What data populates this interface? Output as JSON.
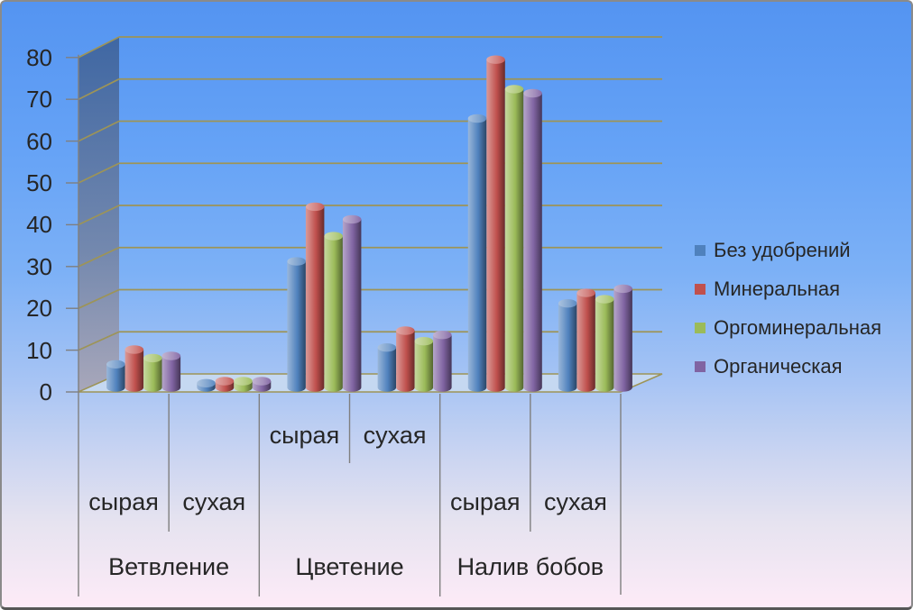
{
  "chart_data": {
    "type": "bar",
    "style": "3d-cylinder",
    "title": "",
    "xlabel": "",
    "ylabel": "",
    "y_axis": {
      "min": 0,
      "max": 80,
      "step": 10,
      "tick_labels": [
        "0",
        "10",
        "20",
        "30",
        "40",
        "50",
        "60",
        "70",
        "80"
      ]
    },
    "grid": true,
    "legend_position": "right",
    "series": [
      {
        "name": "Без удобрений",
        "color": "#4f81bd"
      },
      {
        "name": "Минеральная",
        "color": "#c0504d"
      },
      {
        "name": "Оргоминеральная",
        "color": "#9bbb59"
      },
      {
        "name": "Органическая",
        "color": "#8064a2"
      }
    ],
    "groups": [
      {
        "label": "Ветвление",
        "subgroups": [
          {
            "label": "сырая",
            "values": [
              5.5,
              9,
              7,
              7.5
            ]
          },
          {
            "label": "сухая",
            "values": [
              1,
              1.5,
              1.5,
              1.5
            ]
          }
        ]
      },
      {
        "label": "Цветение",
        "subgroups": [
          {
            "label": "сырая",
            "values": [
              30,
              43,
              36,
              40
            ]
          },
          {
            "label": "сухая",
            "values": [
              9.5,
              13.5,
              11,
              12.5
            ]
          }
        ]
      },
      {
        "label": "Налив бобов",
        "subgroups": [
          {
            "label": "сырая",
            "values": [
              64,
              78,
              71,
              70
            ]
          },
          {
            "label": "сухая",
            "values": [
              20,
              22.5,
              21,
              23.5
            ]
          }
        ]
      }
    ]
  },
  "colors": {
    "background_top": "#5494f1",
    "background_bottom": "#fdebf7",
    "gridline": "#9d9457",
    "axis_line": "#7f7f7f",
    "wall_top": "#3f67a3",
    "wall_mid": "#7388ae",
    "wall_bottom": "#a8a7ba",
    "floor": "#c5d8f1",
    "text": "#262626"
  }
}
